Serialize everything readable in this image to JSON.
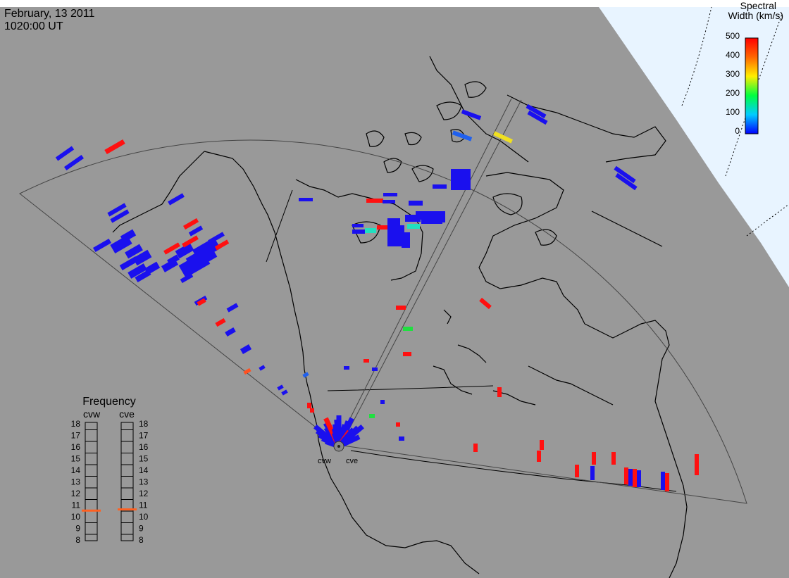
{
  "header": {
    "date": "February, 13 2011",
    "time": "1020:00 UT"
  },
  "colorbar": {
    "title_line1": "Spectral",
    "title_line2": "Width (km/s)",
    "ticks": [
      "500",
      "400",
      "300",
      "200",
      "100",
      "0"
    ]
  },
  "radars": {
    "west": "cvw",
    "east": "cve"
  },
  "frequency_panel": {
    "title": "Frequency",
    "west_label": "cvw",
    "east_label": "cve",
    "scale": [
      "18",
      "17",
      "16",
      "15",
      "14",
      "13",
      "12",
      "11",
      "10",
      "9",
      "8"
    ],
    "west_mhz": 10.5,
    "east_mhz": 10.6
  },
  "colors": {
    "land": "#999999",
    "polar_region": "#e8f4ff",
    "low_width": "#1a10ee",
    "high_width": "#ff1010",
    "marker": "#ff6020"
  }
}
